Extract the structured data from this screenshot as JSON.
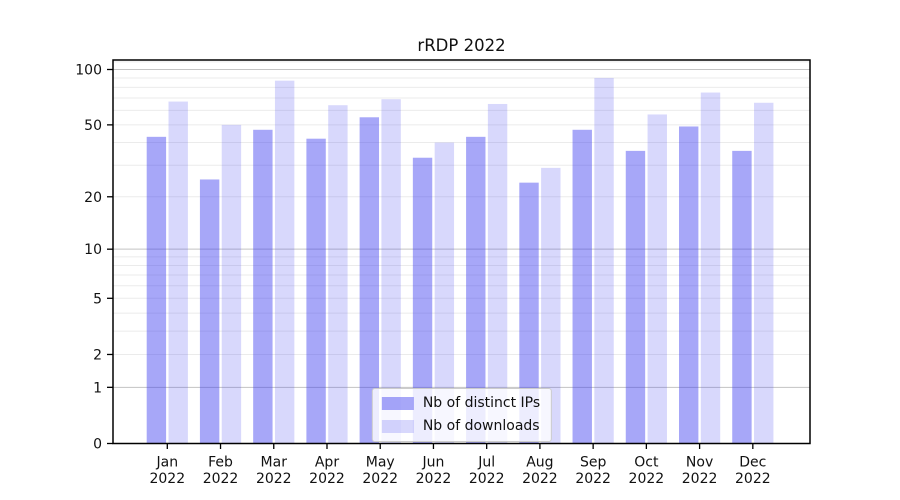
{
  "chart_data": {
    "type": "bar",
    "title": "rRDP 2022",
    "categories": [
      "Jan 2022",
      "Feb 2022",
      "Mar 2022",
      "Apr 2022",
      "May 2022",
      "Jun 2022",
      "Jul 2022",
      "Aug 2022",
      "Sep 2022",
      "Oct 2022",
      "Nov 2022",
      "Dec 2022"
    ],
    "series": [
      {
        "name": "Nb of distinct IPs",
        "color": "#3c3cf0",
        "alpha": 0.45,
        "values": [
          43,
          25,
          47,
          42,
          55,
          33,
          43,
          24,
          47,
          36,
          49,
          36
        ]
      },
      {
        "name": "Nb of downloads",
        "color": "#3c3cf0",
        "alpha": 0.2,
        "values": [
          67,
          50,
          87,
          64,
          69,
          40,
          65,
          29,
          90,
          57,
          75,
          66
        ]
      }
    ],
    "xlabel": "",
    "ylabel": "",
    "yscale": "log1p",
    "ylim": [
      0,
      112
    ],
    "yticks": [
      0,
      1,
      2,
      5,
      10,
      20,
      50,
      100
    ],
    "ytick_major_grid": [
      1,
      10,
      100
    ],
    "ytick_minor_grid": [
      2,
      3,
      4,
      5,
      6,
      7,
      8,
      9,
      20,
      30,
      40,
      50,
      60,
      70,
      80,
      90,
      110
    ],
    "grid": "both",
    "legend_position": "lower center"
  },
  "style": {
    "grid_minor_color": "#ebebeb",
    "grid_major_color": "#c3c3c3",
    "spine_color": "#000000",
    "text_color": "#111111",
    "background": "#ffffff"
  }
}
